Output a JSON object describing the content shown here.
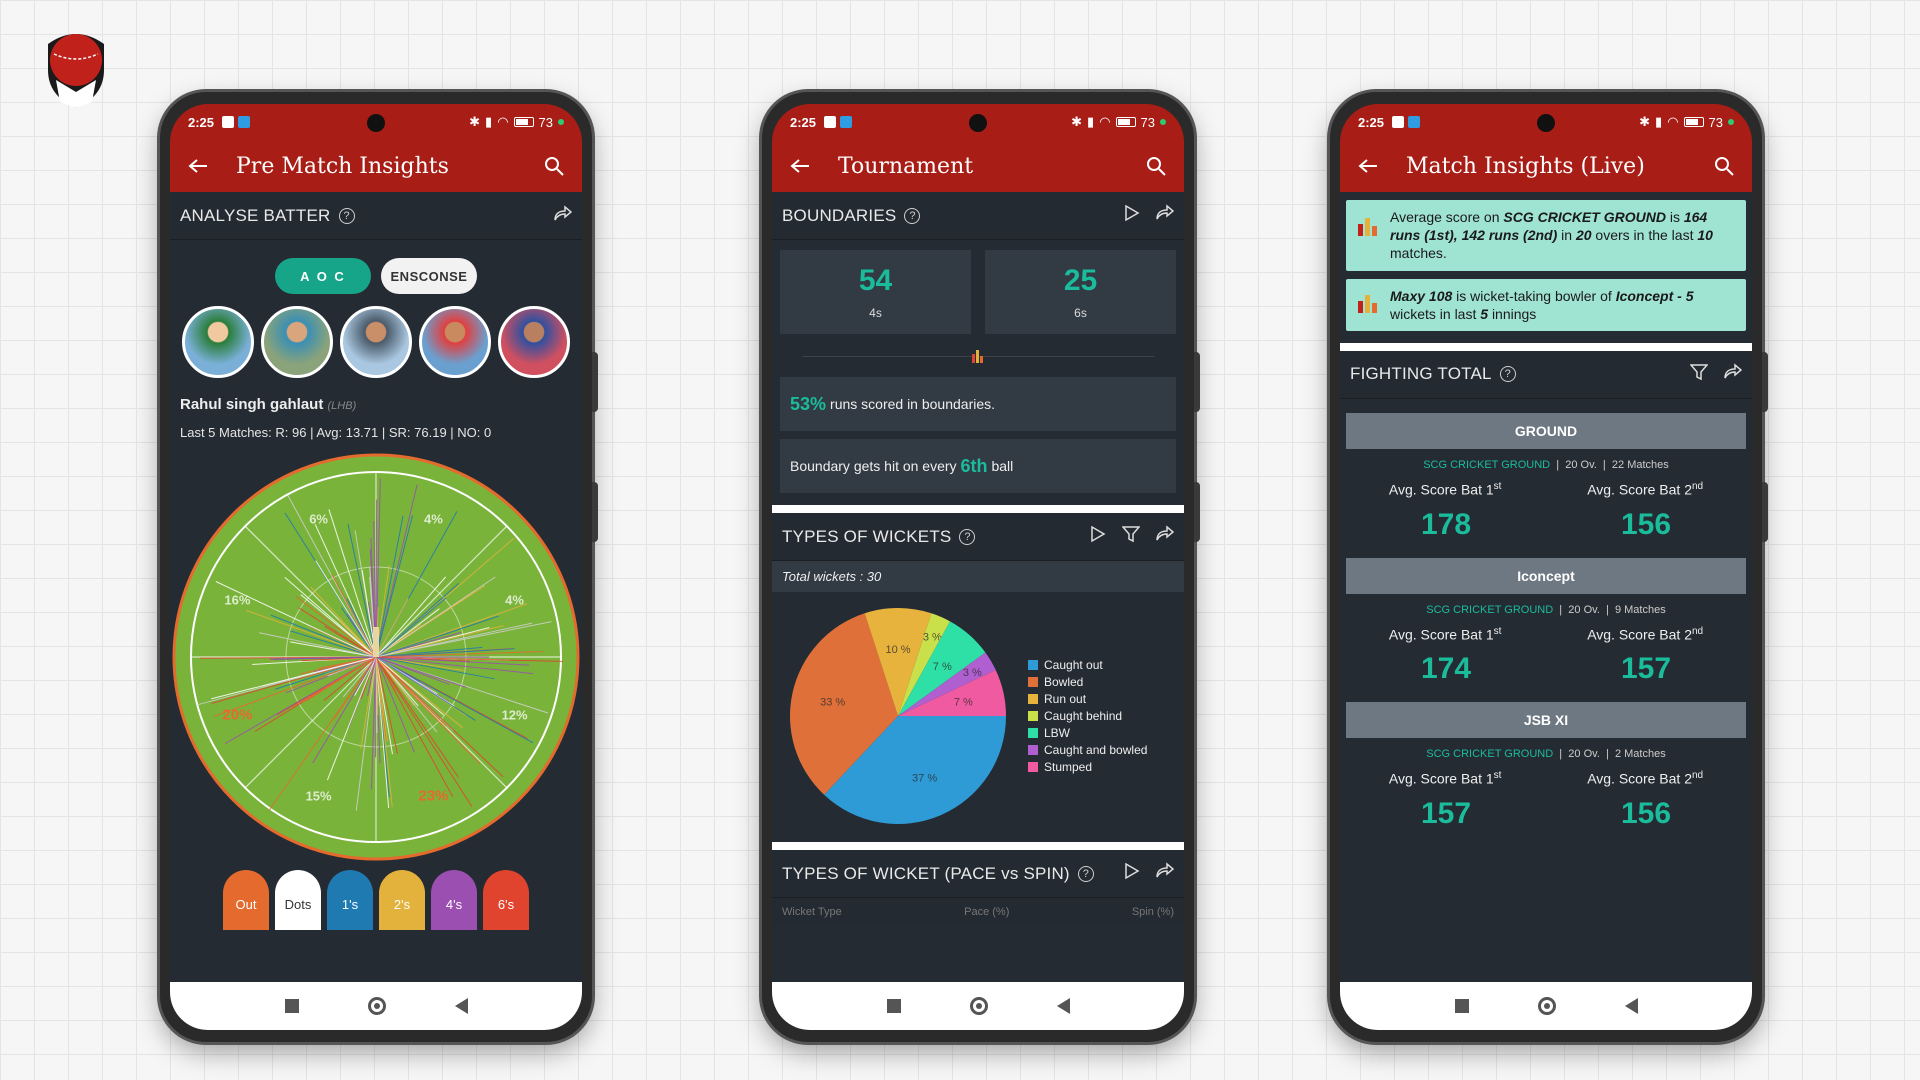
{
  "colors": {
    "brand_red": "#a81d16",
    "accent": "#1abc9c",
    "bg_dark": "#252b33"
  },
  "status": {
    "time": "2:25",
    "battery": "73"
  },
  "phone1": {
    "title": "Pre Match Insights",
    "section": "ANALYSE BATTER",
    "tabs": [
      "A O C",
      "ENSCONSE"
    ],
    "player_name": "Rahul singh gahlaut",
    "player_hand": "(LHB)",
    "player_stats": "Last 5 Matches: R: 96 | Avg: 13.71 | SR: 76.19 | NO: 0",
    "zones": [
      "4%",
      "4%",
      "12%",
      "23%",
      "15%",
      "20%",
      "16%",
      "6%"
    ],
    "pills": [
      "Out",
      "Dots",
      "1's",
      "2's",
      "4's",
      "6's"
    ]
  },
  "phone2": {
    "title": "Tournament",
    "boundaries": {
      "label": "BOUNDARIES",
      "fours": "54",
      "fours_cap": "4s",
      "sixes": "25",
      "sixes_cap": "6s",
      "pct": "53%",
      "pct_text": "runs scored in boundaries.",
      "every_pre": "Boundary gets hit on every",
      "every_val": "6th",
      "every_post": "ball"
    },
    "wickets": {
      "label": "TYPES OF WICKETS",
      "total": "Total wickets : 30",
      "legend": [
        "Caught out",
        "Bowled",
        "Run out",
        "Caught behind",
        "LBW",
        "Caught and bowled",
        "Stumped"
      ],
      "slices": [
        {
          "name": "Caught out",
          "pct": 37,
          "label": "37 %",
          "color": "#2e9bd6"
        },
        {
          "name": "Bowled",
          "pct": 33,
          "label": "33 %",
          "color": "#e0703a"
        },
        {
          "name": "Run out",
          "pct": 10,
          "label": "10 %",
          "color": "#e8b33d"
        },
        {
          "name": "Caught behind",
          "pct": 3,
          "label": "3 %",
          "color": "#c9e04a"
        },
        {
          "name": "LBW",
          "pct": 7,
          "label": "7 %",
          "color": "#2ee0a5"
        },
        {
          "name": "Caught and bowled",
          "pct": 3,
          "label": "3 %",
          "color": "#b05fd0"
        },
        {
          "name": "Stumped",
          "pct": 7,
          "label": "7 %",
          "color": "#ef5aa0"
        }
      ]
    },
    "pace_spin": {
      "label": "TYPES OF WICKET (PACE vs SPIN)",
      "cols": [
        "Wicket Type",
        "Pace (%)",
        "Spin (%)"
      ]
    }
  },
  "phone3": {
    "title": "Match Insights (Live)",
    "alert1": {
      "t1": "Average score on",
      "b1": "SCG CRICKET GROUND",
      "t2": "is",
      "b2": "164 runs (1st), 142 runs (2nd)",
      "t3": "in",
      "b3": "20",
      "t4": "overs in the last",
      "b4": "10",
      "t5": "matches."
    },
    "alert2": {
      "b1": "Maxy 108",
      "t1": "is wicket-taking bowler of",
      "b2": "Iconcept - 5",
      "t2": "wickets in last",
      "b3": "5",
      "t3": "innings"
    },
    "section": "FIGHTING TOTAL",
    "cards": [
      {
        "title": "GROUND",
        "ground": "SCG CRICKET GROUND",
        "overs": "20 Ov.",
        "matches": "22 Matches",
        "bat1": "178",
        "bat2": "156"
      },
      {
        "title": "Iconcept",
        "ground": "SCG CRICKET GROUND",
        "overs": "20 Ov.",
        "matches": "9 Matches",
        "bat1": "174",
        "bat2": "157"
      },
      {
        "title": "JSB XI",
        "ground": "SCG CRICKET GROUND",
        "overs": "20 Ov.",
        "matches": "2 Matches",
        "bat1": "157",
        "bat2": "156"
      }
    ],
    "avg1": "Avg. Score Bat 1",
    "avg2": "Avg. Score Bat 2",
    "sup1": "st",
    "sup2": "nd"
  }
}
